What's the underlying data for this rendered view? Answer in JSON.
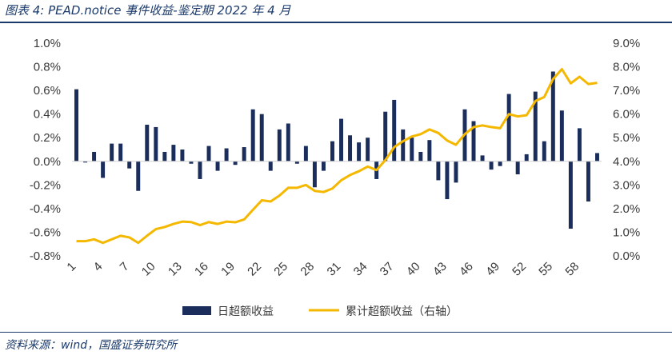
{
  "title": "图表 4:  PEAD.notice 事件收益-鉴定期 2022 年 4 月",
  "source": "资料来源：wind，国盛证券研究所",
  "chart_data": {
    "type": "bar+line",
    "x": [
      1,
      2,
      3,
      4,
      5,
      6,
      7,
      8,
      9,
      10,
      11,
      12,
      13,
      14,
      15,
      16,
      17,
      18,
      19,
      20,
      21,
      22,
      23,
      24,
      25,
      26,
      27,
      28,
      29,
      30,
      31,
      32,
      33,
      34,
      35,
      36,
      37,
      38,
      39,
      40,
      41,
      42,
      43,
      44,
      45,
      46,
      47,
      48,
      49,
      50,
      51,
      52,
      53,
      54,
      55,
      56,
      57,
      58,
      59,
      60
    ],
    "x_ticks": [
      1,
      4,
      7,
      10,
      13,
      16,
      19,
      22,
      25,
      28,
      31,
      34,
      37,
      40,
      43,
      46,
      49,
      52,
      55,
      58
    ],
    "series": [
      {
        "name": "日超额收益",
        "type": "bar",
        "axis": "left",
        "color": "#1b2d5a",
        "values": [
          0.61,
          -0.01,
          0.08,
          -0.14,
          0.15,
          0.15,
          -0.06,
          -0.25,
          0.31,
          0.29,
          0.08,
          0.14,
          0.1,
          -0.02,
          -0.15,
          0.13,
          -0.08,
          0.11,
          -0.03,
          0.12,
          0.44,
          0.4,
          -0.08,
          0.27,
          0.32,
          -0.02,
          0.13,
          -0.22,
          -0.08,
          0.17,
          0.36,
          0.22,
          0.16,
          0.2,
          -0.15,
          0.42,
          0.52,
          0.27,
          0.2,
          0.08,
          0.18,
          -0.16,
          -0.32,
          -0.18,
          0.44,
          0.34,
          0.05,
          -0.07,
          -0.04,
          0.57,
          -0.11,
          0.06,
          0.59,
          0.17,
          0.76,
          0.43,
          -0.57,
          0.28,
          -0.34,
          0.07
        ]
      },
      {
        "name": "累计超额收益（右轴）",
        "type": "line",
        "axis": "right",
        "color": "#f5b800",
        "values": [
          0.62,
          0.62,
          0.7,
          0.55,
          0.7,
          0.85,
          0.78,
          0.55,
          0.85,
          1.13,
          1.22,
          1.35,
          1.45,
          1.43,
          1.3,
          1.43,
          1.35,
          1.45,
          1.42,
          1.54,
          1.95,
          2.35,
          2.3,
          2.55,
          2.88,
          2.88,
          3.0,
          2.75,
          2.7,
          2.85,
          3.2,
          3.42,
          3.58,
          3.78,
          3.63,
          4.05,
          4.6,
          4.85,
          5.05,
          5.15,
          5.35,
          5.2,
          4.88,
          4.7,
          5.15,
          5.45,
          5.52,
          5.45,
          5.4,
          6.0,
          5.9,
          5.95,
          6.55,
          6.72,
          7.48,
          7.9,
          7.3,
          7.58,
          7.27,
          7.32
        ]
      }
    ],
    "y_left": {
      "min": -0.8,
      "max": 1.0,
      "ticks": [
        "-0.8%",
        "-0.6%",
        "-0.4%",
        "-0.2%",
        "0.0%",
        "0.2%",
        "0.4%",
        "0.6%",
        "0.8%",
        "1.0%"
      ]
    },
    "y_right": {
      "min": 0,
      "max": 9,
      "ticks": [
        "0.0%",
        "1.0%",
        "2.0%",
        "3.0%",
        "4.0%",
        "5.0%",
        "6.0%",
        "7.0%",
        "8.0%",
        "9.0%"
      ]
    },
    "legend_position": "bottom",
    "grid": false
  }
}
